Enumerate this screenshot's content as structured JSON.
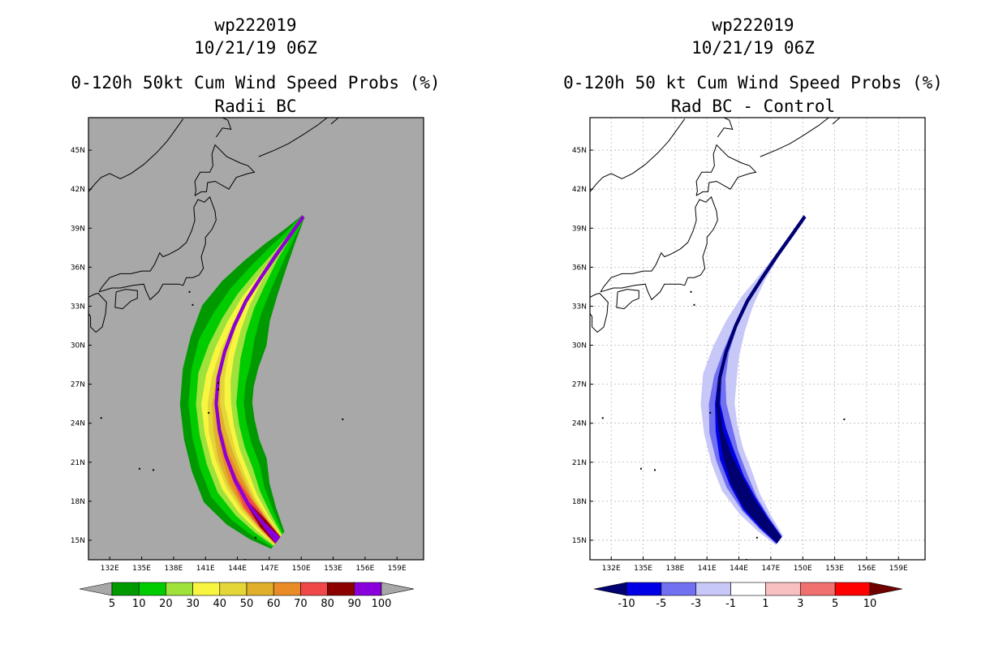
{
  "chart_data": [
    {
      "type": "heatmap",
      "title_line1": "wp222019",
      "title_line2": "10/21/19 06Z",
      "title_line3": "0-120h 50kt Cum Wind Speed Probs (%)",
      "subtitle": "Radii BC",
      "x_ticks": [
        "132E",
        "135E",
        "138E",
        "141E",
        "144E",
        "147E",
        "150E",
        "153E",
        "156E",
        "159E"
      ],
      "y_ticks": [
        "15N",
        "18N",
        "21N",
        "24N",
        "27N",
        "30N",
        "33N",
        "36N",
        "39N",
        "42N",
        "45N"
      ],
      "xlim": [
        130,
        161.5
      ],
      "ylim": [
        13.5,
        47.5
      ],
      "background": "#a8a8a8",
      "colorbar": {
        "labels": [
          "5",
          "10",
          "20",
          "30",
          "40",
          "50",
          "60",
          "70",
          "80",
          "90",
          "100"
        ],
        "colors": [
          "#009a00",
          "#00cc00",
          "#9fe23b",
          "#f8f540",
          "#e4d638",
          "#e0b02c",
          "#e98c27",
          "#f04848",
          "#8c0000",
          "#8a00dc"
        ],
        "under": "#a8a8a8",
        "over": "#a8a8a8"
      },
      "contour_levels": [
        5,
        10,
        20,
        30,
        40,
        50,
        60,
        70,
        80,
        90
      ]
    },
    {
      "type": "heatmap",
      "title_line1": "wp222019",
      "title_line2": "10/21/19 06Z",
      "title_line3": "0-120h 50 kt Cum Wind Speed Probs (%)",
      "subtitle": "Rad BC - Control",
      "x_ticks": [
        "132E",
        "135E",
        "138E",
        "141E",
        "144E",
        "147E",
        "150E",
        "153E",
        "156E",
        "159E"
      ],
      "y_ticks": [
        "15N",
        "18N",
        "21N",
        "24N",
        "27N",
        "30N",
        "33N",
        "36N",
        "39N",
        "42N",
        "45N"
      ],
      "xlim": [
        130,
        161.5
      ],
      "ylim": [
        13.5,
        47.5
      ],
      "background": "#ffffff",
      "grid": true,
      "colorbar": {
        "labels": [
          "-10",
          "-5",
          "-3",
          "-1",
          "1",
          "3",
          "5",
          "10"
        ],
        "colors": [
          "#0000e6",
          "#7070f0",
          "#c8c8f8",
          "#ffffff",
          "#f8c0c0",
          "#f07070",
          "#ff0000"
        ],
        "under": "#000070",
        "over": "#700000"
      },
      "contour_levels": [
        -1,
        -3,
        -5,
        -10
      ]
    }
  ]
}
